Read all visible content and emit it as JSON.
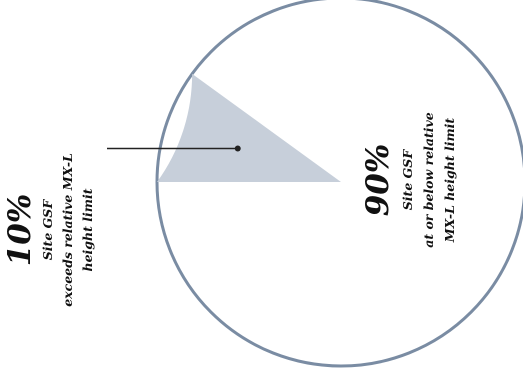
{
  "chart_data": {
    "type": "pie",
    "slices": [
      {
        "value": 90,
        "percent_label": "90%",
        "label_lines": [
          "Site GSF",
          "at or below relative",
          "MX-L height limit"
        ],
        "color": "#ffffff"
      },
      {
        "value": 10,
        "percent_label": "10%",
        "label_lines": [
          "Site GSF",
          "exceeds relative  MX-L",
          "height limit"
        ],
        "color": "#c7cfda"
      }
    ],
    "outline_color": "#7a8ca3",
    "leader_line_color": "#222222",
    "text_orientation": "rotated-90-ccw"
  }
}
